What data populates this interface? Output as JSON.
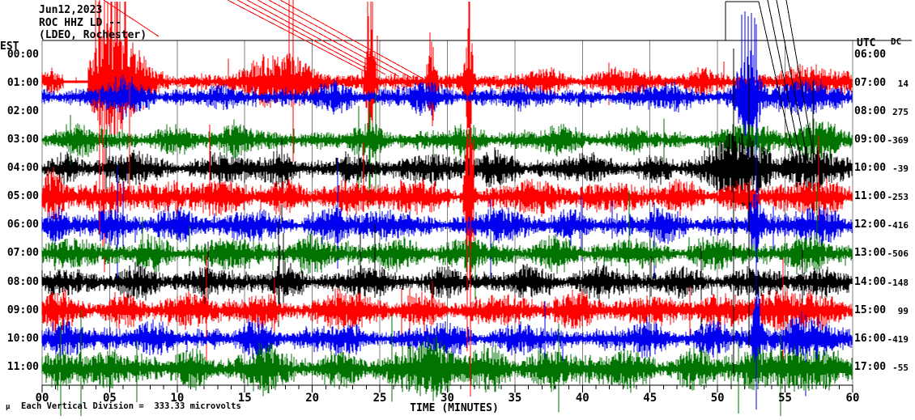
{
  "header": {
    "date": "Jun12,2023",
    "station": "ROC HHZ LD --",
    "location": "(LDEO, Rochester)"
  },
  "axes": {
    "left_header": "EST",
    "right_header": "UTC",
    "dc_header": "DC",
    "x_title": "TIME (MINUTES)",
    "minute_labels": [
      "00",
      "05",
      "10",
      "15",
      "20",
      "25",
      "30",
      "35",
      "40",
      "45",
      "50",
      "55",
      "60"
    ],
    "scale_note": "Each Vertical Division =  333.33 microvolts",
    "scale_mark": "µ"
  },
  "chart_data": {
    "type": "line",
    "kind": "helicorder-seismogram",
    "title": "ROC HHZ LD -- (LDEO, Rochester) Jun12,2023",
    "xlabel": "TIME (MINUTES)",
    "x_range_minutes": [
      0,
      60
    ],
    "x_major_tick_minutes": 5,
    "x_minor_tick_minutes": 1,
    "microvolts_per_division": 333.33,
    "grid": "vertical-5min-gray",
    "trace_colors": {
      "red": "#ff0000",
      "blue": "#0000ee",
      "green": "#007300",
      "black": "#000000",
      "grid": "#7f7f7f"
    },
    "rows": [
      {
        "est": "00:00",
        "utc": "06:00",
        "dc": "",
        "color": null
      },
      {
        "est": "01:00",
        "utc": "07:00",
        "dc": "14",
        "color": "red"
      },
      {
        "est": "02:00",
        "utc": "08:00",
        "dc": "275",
        "color": "blue"
      },
      {
        "est": "03:00",
        "utc": "09:00",
        "dc": "-369",
        "color": "green"
      },
      {
        "est": "04:00",
        "utc": "10:00",
        "dc": "-39",
        "color": "black"
      },
      {
        "est": "05:00",
        "utc": "11:00",
        "dc": "-253",
        "color": "red"
      },
      {
        "est": "06:00",
        "utc": "12:00",
        "dc": "-416",
        "color": "blue"
      },
      {
        "est": "07:00",
        "utc": "13:00",
        "dc": "-506",
        "color": "green"
      },
      {
        "est": "08:00",
        "utc": "14:00",
        "dc": "-148",
        "color": "black"
      },
      {
        "est": "09:00",
        "utc": "15:00",
        "dc": "99",
        "color": "red"
      },
      {
        "est": "10:00",
        "utc": "16:00",
        "dc": "-419",
        "color": "blue"
      },
      {
        "est": "11:00",
        "utc": "17:00",
        "dc": "-55",
        "color": "green"
      }
    ]
  }
}
